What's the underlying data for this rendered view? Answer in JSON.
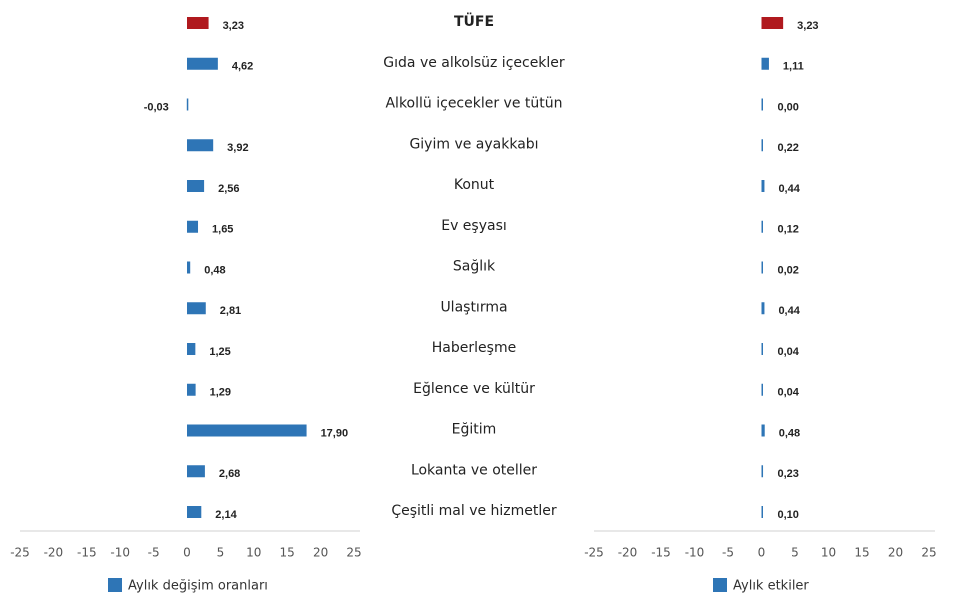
{
  "chart_data": [
    {
      "type": "bar",
      "orientation": "horizontal",
      "categories": [
        "TÜFE",
        "Gıda ve alkolsüz içecekler",
        "Alkollü içecekler ve tütün",
        "Giyim ve ayakkabı",
        "Konut",
        "Ev eşyası",
        "Sağlık",
        "Ulaştırma",
        "Haberleşme",
        "Eğlence ve kültür",
        "Eğitim",
        "Lokanta ve oteller",
        "Çeşitli mal ve hizmetler"
      ],
      "series": [
        {
          "name": "Aylık değişim oranları",
          "color": "#2e75b6",
          "colors": [
            "#b0191e",
            "#2e75b6",
            "#2e75b6",
            "#2e75b6",
            "#2e75b6",
            "#2e75b6",
            "#2e75b6",
            "#2e75b6",
            "#2e75b6",
            "#2e75b6",
            "#2e75b6",
            "#2e75b6",
            "#2e75b6"
          ],
          "values": [
            3.23,
            4.62,
            -0.03,
            3.92,
            2.56,
            1.65,
            0.48,
            2.81,
            1.25,
            1.29,
            17.9,
            2.68,
            2.14
          ],
          "value_labels": [
            "3,23",
            "4,62",
            "-0,03",
            "3,92",
            "2,56",
            "1,65",
            "0,48",
            "2,81",
            "1,25",
            "1,29",
            "17,90",
            "2,68",
            "2,14"
          ]
        }
      ],
      "xlim": [
        -25,
        25
      ],
      "xticks": [
        -25,
        -20,
        -15,
        -10,
        -5,
        0,
        5,
        10,
        15,
        20,
        25
      ],
      "grid": false
    },
    {
      "type": "bar",
      "orientation": "horizontal",
      "series": [
        {
          "name": "Aylık etkiler",
          "color": "#2e75b6",
          "colors": [
            "#b0191e",
            "#2e75b6",
            "#2e75b6",
            "#2e75b6",
            "#2e75b6",
            "#2e75b6",
            "#2e75b6",
            "#2e75b6",
            "#2e75b6",
            "#2e75b6",
            "#2e75b6",
            "#2e75b6",
            "#2e75b6"
          ],
          "values": [
            3.23,
            1.11,
            0.0,
            0.22,
            0.44,
            0.12,
            0.02,
            0.44,
            0.04,
            0.04,
            0.48,
            0.23,
            0.1
          ],
          "value_labels": [
            "3,23",
            "1,11",
            "0,00",
            "0,22",
            "0,44",
            "0,12",
            "0,02",
            "0,44",
            "0,04",
            "0,04",
            "0,48",
            "0,23",
            "0,10"
          ]
        }
      ],
      "xlim": [
        -25,
        25
      ],
      "xticks": [
        -25,
        -20,
        -15,
        -10,
        -5,
        0,
        5,
        10,
        15,
        20,
        25
      ],
      "grid": false
    }
  ]
}
